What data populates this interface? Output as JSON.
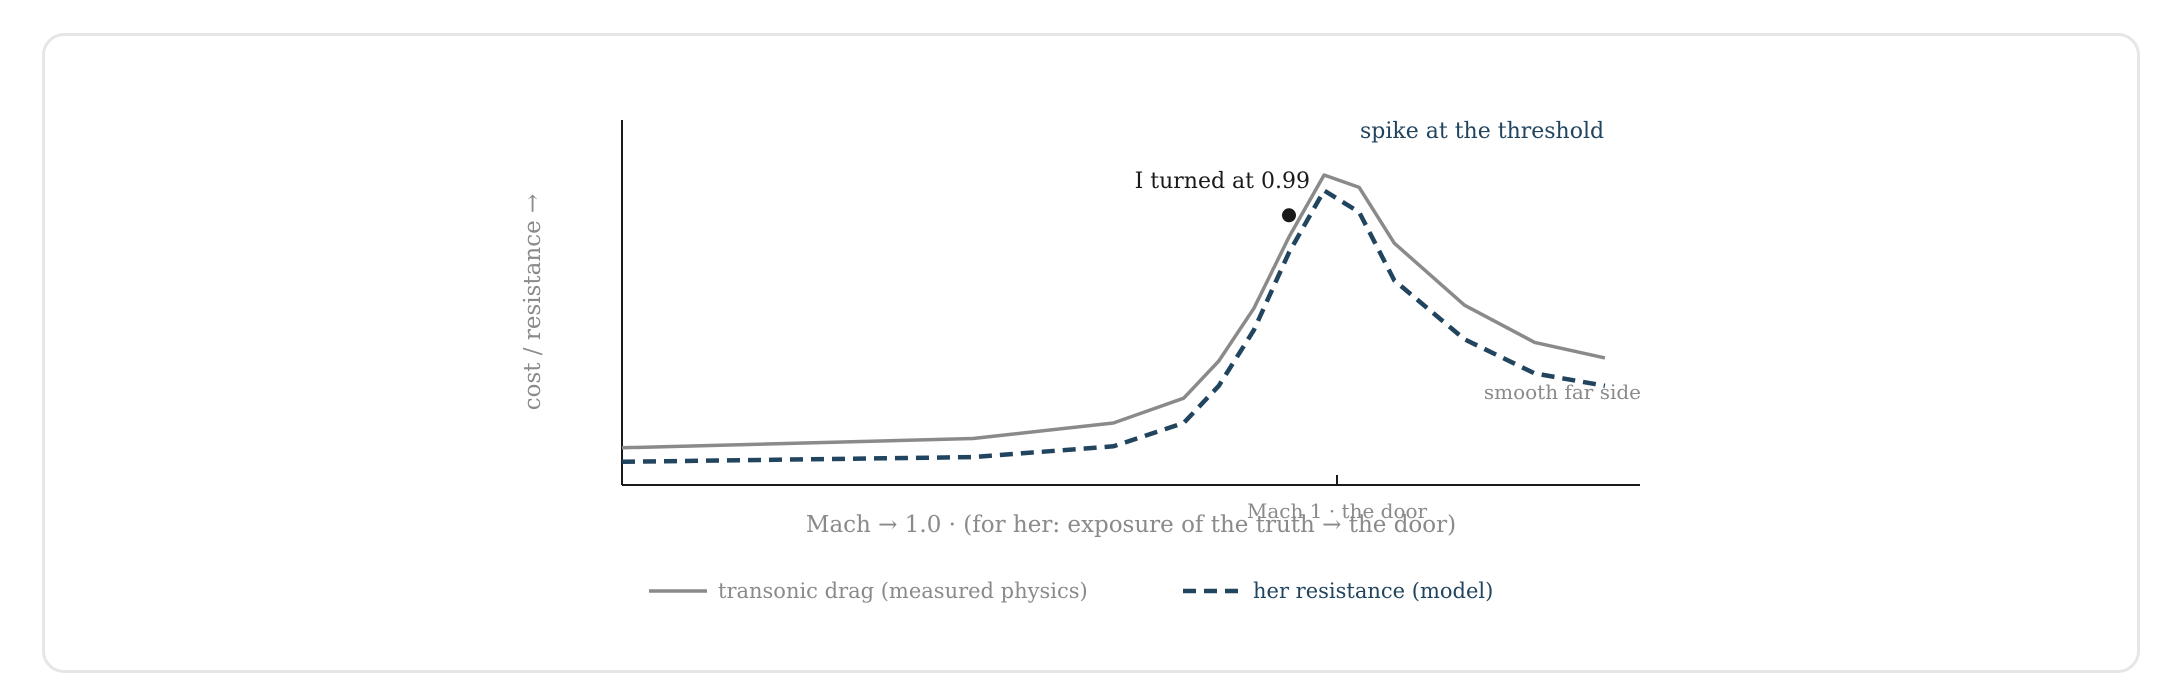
{
  "chart_data": {
    "type": "line",
    "title": "",
    "xlabel": "Mach → 1.0 · (for her: exposure of the truth → the door)",
    "ylabel": "cost / resistance →",
    "xlim": [
      0.8,
      1.09
    ],
    "ylim": [
      0,
      10
    ],
    "x_ticks": [
      {
        "value": 1.0,
        "label": "Mach 1 · the door"
      }
    ],
    "grid": false,
    "legend": "bottom",
    "series": [
      {
        "name": "transonic drag (measured physics)",
        "color": "#8a8a8a",
        "style": "solid",
        "x": [
          0.8,
          0.9,
          0.94,
          0.96,
          0.97,
          0.98,
          0.99,
          1.0,
          1.01,
          1.02,
          1.04,
          1.06,
          1.08
        ],
        "y": [
          1.2,
          1.5,
          2.0,
          2.8,
          4.0,
          5.7,
          8.0,
          10.0,
          9.6,
          7.8,
          5.8,
          4.6,
          4.1
        ]
      },
      {
        "name": "her resistance (model)",
        "color": "#21445f",
        "style": "dashed",
        "x": [
          0.8,
          0.9,
          0.94,
          0.96,
          0.97,
          0.98,
          0.99,
          1.0,
          1.01,
          1.02,
          1.04,
          1.06,
          1.08
        ],
        "y": [
          0.75,
          0.9,
          1.25,
          2.0,
          3.2,
          5.0,
          7.5,
          9.5,
          8.8,
          6.6,
          4.7,
          3.6,
          3.2
        ]
      }
    ],
    "annotations": [
      {
        "text": "I turned at 0.99",
        "x": 0.99,
        "y": 8.7,
        "marker": true
      },
      {
        "text": "spike at the threshold"
      },
      {
        "text": "smooth far side"
      }
    ]
  }
}
